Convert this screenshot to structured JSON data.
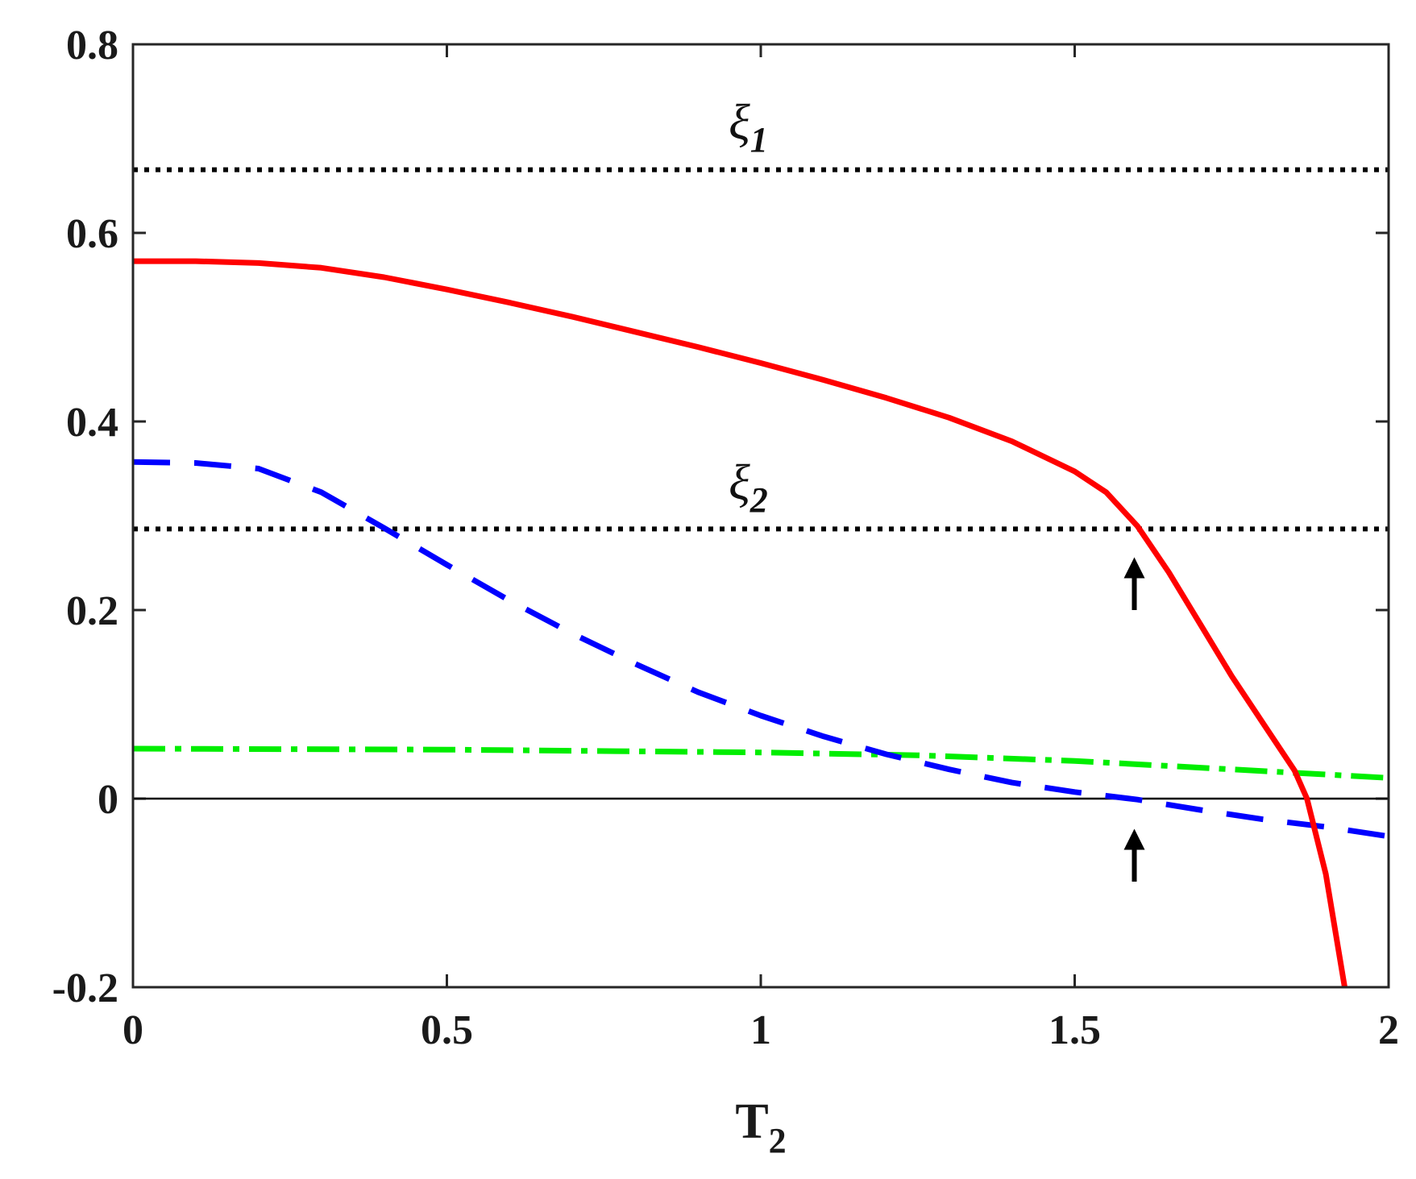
{
  "chart_data": {
    "type": "line",
    "title": "",
    "xlabel": "T",
    "xlabel_subscript": "2",
    "ylabel": "",
    "xlim": [
      0,
      2
    ],
    "ylim": [
      -0.2,
      0.8
    ],
    "xticks": [
      "0",
      "0.5",
      "1",
      "1.5",
      "2"
    ],
    "yticks": [
      "-0.2",
      "0",
      "0.2",
      "0.4",
      "0.6",
      "0.8"
    ],
    "grid": false,
    "legend": "none",
    "series": [
      {
        "style": "solid",
        "color": "#ff0000",
        "x": [
          0,
          0.1,
          0.2,
          0.3,
          0.4,
          0.5,
          0.6,
          0.7,
          0.8,
          0.9,
          1.0,
          1.1,
          1.2,
          1.3,
          1.4,
          1.5,
          1.55,
          1.6,
          1.65,
          1.7,
          1.75,
          1.8,
          1.85,
          1.87,
          1.9,
          1.93
        ],
        "y": [
          0.57,
          0.57,
          0.568,
          0.563,
          0.553,
          0.54,
          0.526,
          0.511,
          0.495,
          0.479,
          0.462,
          0.444,
          0.425,
          0.404,
          0.379,
          0.347,
          0.325,
          0.289,
          0.24,
          0.185,
          0.13,
          0.08,
          0.03,
          0.0,
          -0.08,
          -0.2
        ]
      },
      {
        "style": "dashed",
        "color": "#0000ff",
        "x": [
          0,
          0.1,
          0.2,
          0.3,
          0.4,
          0.5,
          0.6,
          0.7,
          0.8,
          0.9,
          1.0,
          1.1,
          1.2,
          1.3,
          1.4,
          1.5,
          1.6,
          1.7,
          1.8,
          1.9,
          2.0
        ],
        "y": [
          0.357,
          0.356,
          0.35,
          0.325,
          0.287,
          0.248,
          0.21,
          0.175,
          0.143,
          0.113,
          0.088,
          0.066,
          0.047,
          0.031,
          0.017,
          0.007,
          -0.001,
          -0.012,
          -0.022,
          -0.03,
          -0.04
        ]
      },
      {
        "style": "dashdot",
        "color": "#00ee00",
        "x": [
          0,
          0.5,
          1.0,
          1.25,
          1.5,
          1.75,
          2.0
        ],
        "y": [
          0.053,
          0.052,
          0.049,
          0.046,
          0.04,
          0.031,
          0.022
        ]
      },
      {
        "style": "dotted",
        "color": "#000000",
        "x": [
          0,
          2
        ],
        "y": [
          0.667,
          0.667
        ]
      },
      {
        "style": "dotted",
        "color": "#000000",
        "x": [
          0,
          2
        ],
        "y": [
          0.286,
          0.286
        ]
      }
    ],
    "reference_lines": [
      {
        "y": 0,
        "color": "#000000"
      }
    ],
    "annotations": [
      {
        "text": "ξ",
        "subscript": "1",
        "x": 0.98,
        "y": 0.7
      },
      {
        "text": "ξ",
        "subscript": "2",
        "x": 0.98,
        "y": 0.318
      }
    ],
    "arrows": [
      {
        "x": 1.595,
        "y_tail": 0.2,
        "y_head": 0.256
      },
      {
        "x": 1.595,
        "y_tail": -0.088,
        "y_head": -0.032
      }
    ]
  }
}
